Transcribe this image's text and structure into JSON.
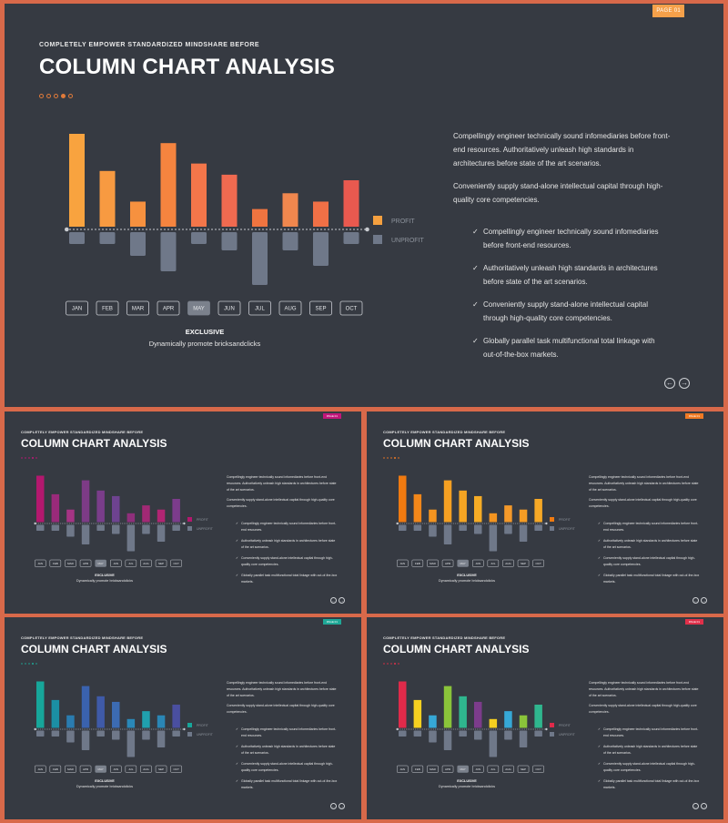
{
  "main_slide": {
    "page_tag": "PAGE 01",
    "subtitle": "COMPLETELY EMPOWER STANDARDIZED MINDSHARE BEFORE",
    "title": "COLUMN CHART ANALYSIS",
    "exclusive_label": "EXCLUSIVE",
    "exclusive_caption": "Dynamically promote bricksandclicks",
    "paragraphs": [
      "Compellingly engineer technically sound infomediaries before front-end resources. Authoritatively unleash high standards in architectures before state of the art scenarios.",
      "Conveniently supply stand-alone intellectual capital through high-quality core competencies."
    ],
    "checklist": [
      "Compellingly engineer technically sound infomediaries before front-end resources.",
      "Authoritatively unleash high standards in architectures before state of the art scenarios.",
      "Conveniently supply stand-alone intellectual capital through high-quality core competencies.",
      "Globally parallel task multifunctional total linkage with out-of-the-box markets."
    ],
    "nav": {
      "prev_icon": "arrow-left-icon",
      "next_icon": "arrow-right-icon"
    }
  },
  "chart_data": {
    "type": "bar",
    "categories": [
      "JAN",
      "FEB",
      "MAR",
      "APR",
      "MAY",
      "JUN",
      "JUL",
      "AUG",
      "SEP",
      "OCT"
    ],
    "selected_category": "MAY",
    "series": [
      {
        "name": "PROFIT",
        "values": [
          100,
          60,
          27,
          90,
          68,
          56,
          19,
          36,
          27,
          50
        ]
      },
      {
        "name": "UNPROFIT",
        "values": [
          -13,
          -13,
          -26,
          -43,
          -13,
          -20,
          -58,
          -20,
          -37,
          -13
        ]
      }
    ],
    "colors": {
      "profit_gradient": [
        "#f8a33f",
        "#f79a41",
        "#f6913f",
        "#f5843f",
        "#f3764a",
        "#f06a50",
        "#ef7440",
        "#f0874e",
        "#f07046",
        "#e9594f"
      ],
      "unprofit": "#6f7889",
      "legend_profit": "#f5a03f",
      "legend_unprofit": "#6f7889",
      "axis": "#c8cbd0"
    },
    "ylim": [
      -60,
      100
    ]
  },
  "mini_slides": [
    {
      "page_tag": "PAGE 01",
      "tag_color": "#c2177a",
      "subtitle": "COMPLETELY EMPOWER STANDARDIZED MINDSHARE BEFORE",
      "title": "COLUMN CHART ANALYSIS",
      "dot_color": "#c2177a",
      "bar_colors": [
        "#b3186e",
        "#9a2a7a",
        "#a53484",
        "#7d3b86",
        "#7a3d8a",
        "#6e4390",
        "#8f2f7b",
        "#a22975",
        "#b12573",
        "#7c3c8b"
      ],
      "legend_profit_color": "#b3186e"
    },
    {
      "page_tag": "PAGE 01",
      "tag_color": "#f07a24",
      "subtitle": "COMPLETELY EMPOWER STANDARDIZED MINDSHARE BEFORE",
      "title": "COLUMN CHART ANALYSIS",
      "dot_color": "#f07a24",
      "bar_colors": [
        "#f07a10",
        "#f2871a",
        "#f39420",
        "#f5a022",
        "#f5a523",
        "#f6ac25",
        "#f39420",
        "#f4992a",
        "#f59c24",
        "#f6a826"
      ],
      "legend_profit_color": "#f07a10"
    },
    {
      "page_tag": "PAGE 01",
      "tag_color": "#1fa897",
      "subtitle": "COMPLETELY EMPOWER STANDARDIZED MINDSHARE BEFORE",
      "title": "COLUMN CHART ANALYSIS",
      "dot_color": "#1fa897",
      "bar_colors": [
        "#17a69a",
        "#1b8fa4",
        "#2a7cb0",
        "#3a62ae",
        "#3f5aa8",
        "#3c6bb2",
        "#2a88b8",
        "#20a1ae",
        "#2a86b5",
        "#4a4fa0"
      ],
      "legend_profit_color": "#17a69a"
    },
    {
      "page_tag": "PAGE 01",
      "tag_color": "#e0304a",
      "subtitle": "COMPLETELY EMPOWER STANDARDIZED MINDSHARE BEFORE",
      "title": "COLUMN CHART ANALYSIS",
      "dot_color": "#e0304a",
      "bar_colors": [
        "#e02a4a",
        "#f5d020",
        "#36a8d6",
        "#8ac43a",
        "#2fb68e",
        "#7c3c8b",
        "#f5d020",
        "#36a8d6",
        "#8ac43a",
        "#2fb68e"
      ],
      "legend_profit_color": "#e02a4a"
    }
  ]
}
